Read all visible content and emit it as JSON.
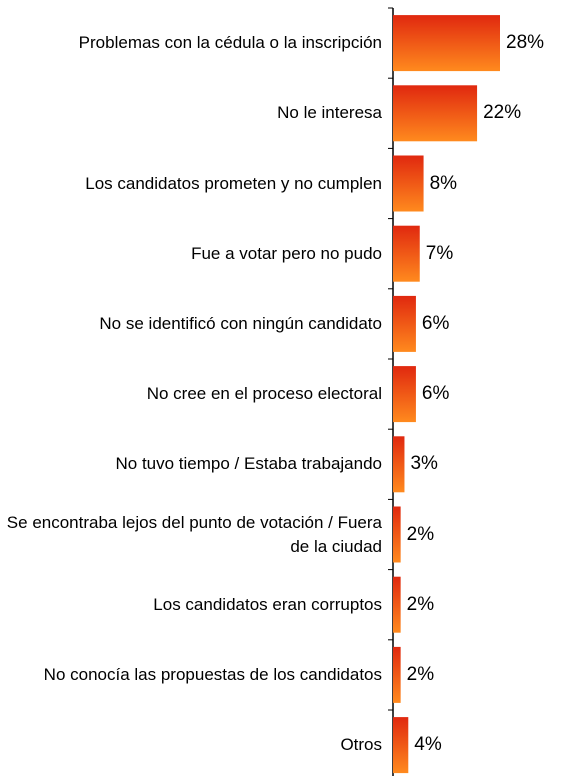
{
  "chart_data": {
    "type": "hbar",
    "categories": [
      "Problemas con la cédula o la inscripción",
      "No le interesa",
      "Los candidatos prometen y no cumplen",
      "Fue a votar pero no pudo",
      "No se identificó con ningún candidato",
      "No cree en el proceso electoral",
      "No tuvo tiempo / Estaba trabajando",
      "Se encontraba lejos del punto de votación / Fuera de la ciudad",
      "Los candidatos eran corruptos",
      "No conocía las propuestas de los candidatos",
      "Otros"
    ],
    "values": [
      28,
      22,
      8,
      7,
      6,
      6,
      3,
      2,
      2,
      2,
      4
    ],
    "value_labels": [
      "28%",
      "22%",
      "8%",
      "7%",
      "6%",
      "6%",
      "3%",
      "2%",
      "2%",
      "2%",
      "4%"
    ],
    "color": "#f04a12"
  }
}
